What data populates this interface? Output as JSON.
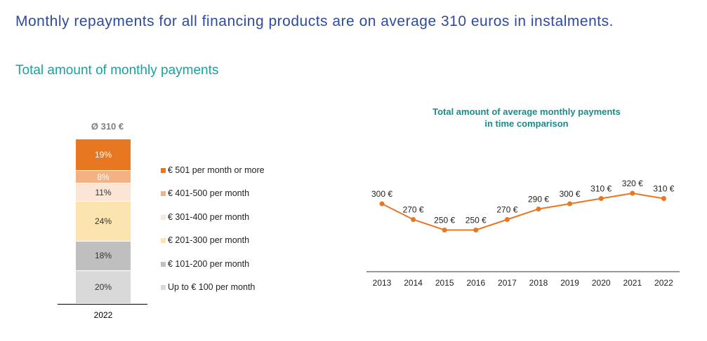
{
  "headline": "Monthly repayments for all financing products are on average 310 euros in instalments.",
  "subheadline": "Total amount of monthly payments",
  "chart_data": [
    {
      "type": "bar",
      "subtype": "stacked-100",
      "title": "Ø 310 €",
      "categories": [
        "2022"
      ],
      "series": [
        {
          "name": "Up to € 100 per month",
          "values": [
            20
          ],
          "label": "20%",
          "color": "#d9d9d9",
          "text_color": "#333333"
        },
        {
          "name": "€ 101-200 per month",
          "values": [
            18
          ],
          "label": "18%",
          "color": "#bfbfbf",
          "text_color": "#333333"
        },
        {
          "name": "€ 201-300 per month",
          "values": [
            24
          ],
          "label": "24%",
          "color": "#fce4b0",
          "text_color": "#333333"
        },
        {
          "name": "€ 301-400 per month",
          "values": [
            11
          ],
          "label": "11%",
          "color": "#fbe5d6",
          "text_color": "#333333"
        },
        {
          "name": "€ 401-500 per month",
          "values": [
            8
          ],
          "label": "8%",
          "color": "#f4b183",
          "text_color": "#ffffff"
        },
        {
          "name": "€ 501 per month or more",
          "values": [
            19
          ],
          "label": "19%",
          "color": "#e87722",
          "text_color": "#ffffff"
        }
      ],
      "ylim": [
        0,
        100
      ],
      "legend_position": "right"
    },
    {
      "type": "line",
      "title": "Total amount of average monthly payments in time comparison",
      "title_lines": [
        "Total amount of average monthly payments",
        "in time comparison"
      ],
      "x": [
        "2013",
        "2014",
        "2015",
        "2016",
        "2017",
        "2018",
        "2019",
        "2020",
        "2021",
        "2022"
      ],
      "series": [
        {
          "values": [
            300,
            270,
            250,
            250,
            270,
            290,
            300,
            310,
            320,
            310
          ],
          "labels": [
            "300 €",
            "270 €",
            "250 €",
            "250 €",
            "270 €",
            "290 €",
            "300 €",
            "310 €",
            "320 €",
            "310 €"
          ],
          "color": "#e87722"
        }
      ],
      "grid": false
    }
  ]
}
